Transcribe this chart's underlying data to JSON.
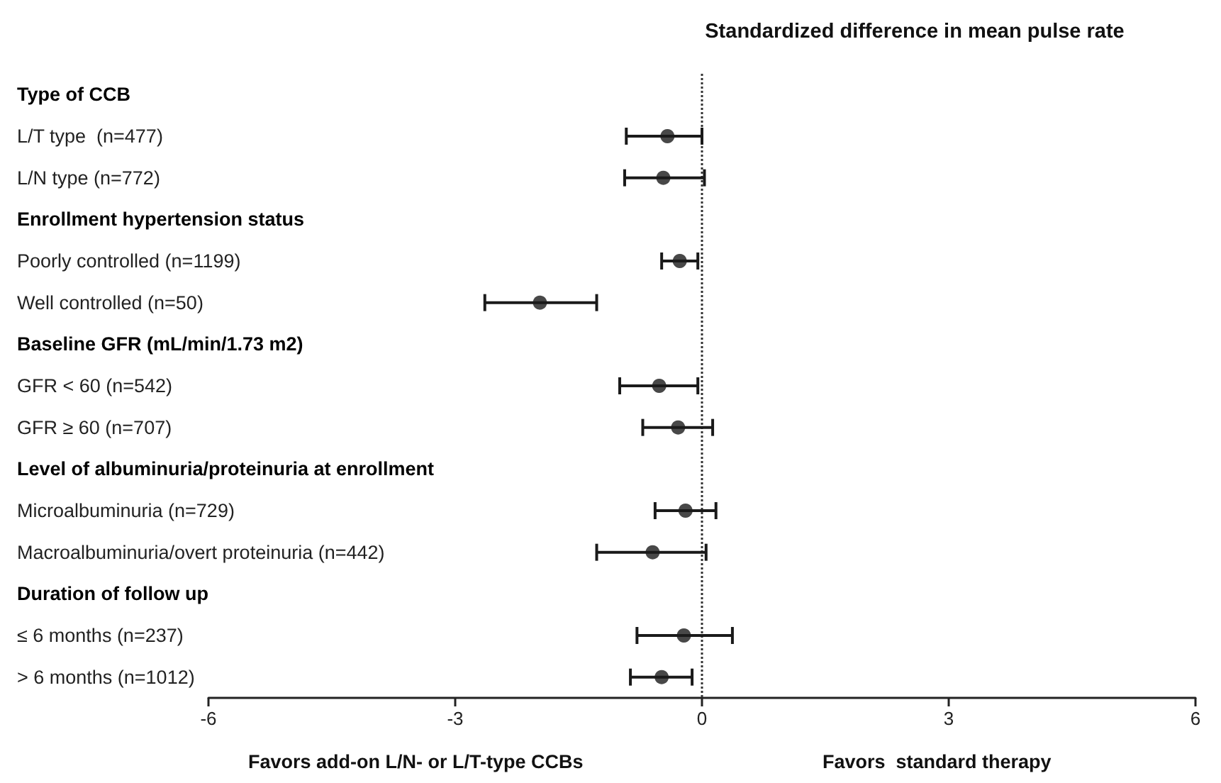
{
  "chart_data": {
    "type": "scatter",
    "orientation": "horizontal",
    "title": "Standardized difference in mean pulse rate",
    "categories": [
      "Type of CCB",
      "L/T type  (n=477)",
      "L/N type (n=772)",
      "Enrollment hypertension status",
      "Poorly controlled (n=1199)",
      "Well controlled (n=50)",
      "Baseline GFR (mL/min/1.73 m2)",
      "GFR < 60 (n=542)",
      "GFR ≥ 60 (n=707)",
      "Level of albuminuria/proteinuria at enrollment",
      "Microalbuminuria (n=729)",
      "Macroalbuminuria/overt proteinuria (n=442)",
      "Duration of follow up",
      "≤ 6 months (n=237)",
      "> 6 months (n=1012)"
    ],
    "values": [
      null,
      -0.42,
      -0.47,
      null,
      -0.27,
      -1.97,
      null,
      -0.52,
      -0.29,
      null,
      -0.2,
      -0.6,
      null,
      -0.22,
      -0.49
    ],
    "errors": [
      null,
      [
        -0.92,
        0.0
      ],
      [
        -0.94,
        0.03
      ],
      null,
      [
        -0.49,
        -0.05
      ],
      [
        -2.64,
        -1.28
      ],
      null,
      [
        -1.0,
        -0.05
      ],
      [
        -0.72,
        0.13
      ],
      null,
      [
        -0.57,
        0.17
      ],
      [
        -1.28,
        0.05
      ],
      null,
      [
        -0.79,
        0.37
      ],
      [
        -0.87,
        -0.12
      ]
    ],
    "color": "#1a1a1a",
    "marker": "circle",
    "xlim": [
      -6,
      6
    ],
    "xticks": [
      -6,
      -3,
      0,
      3,
      6
    ],
    "grid": false,
    "legend": false,
    "ref_lines": [
      {
        "axis": "x",
        "value": 0,
        "color": "#333333",
        "line_style": "dotted"
      }
    ],
    "annotations": [
      "Favors add-on L/N- or L/T-type CCBs",
      "Favors  standard therapy"
    ]
  }
}
